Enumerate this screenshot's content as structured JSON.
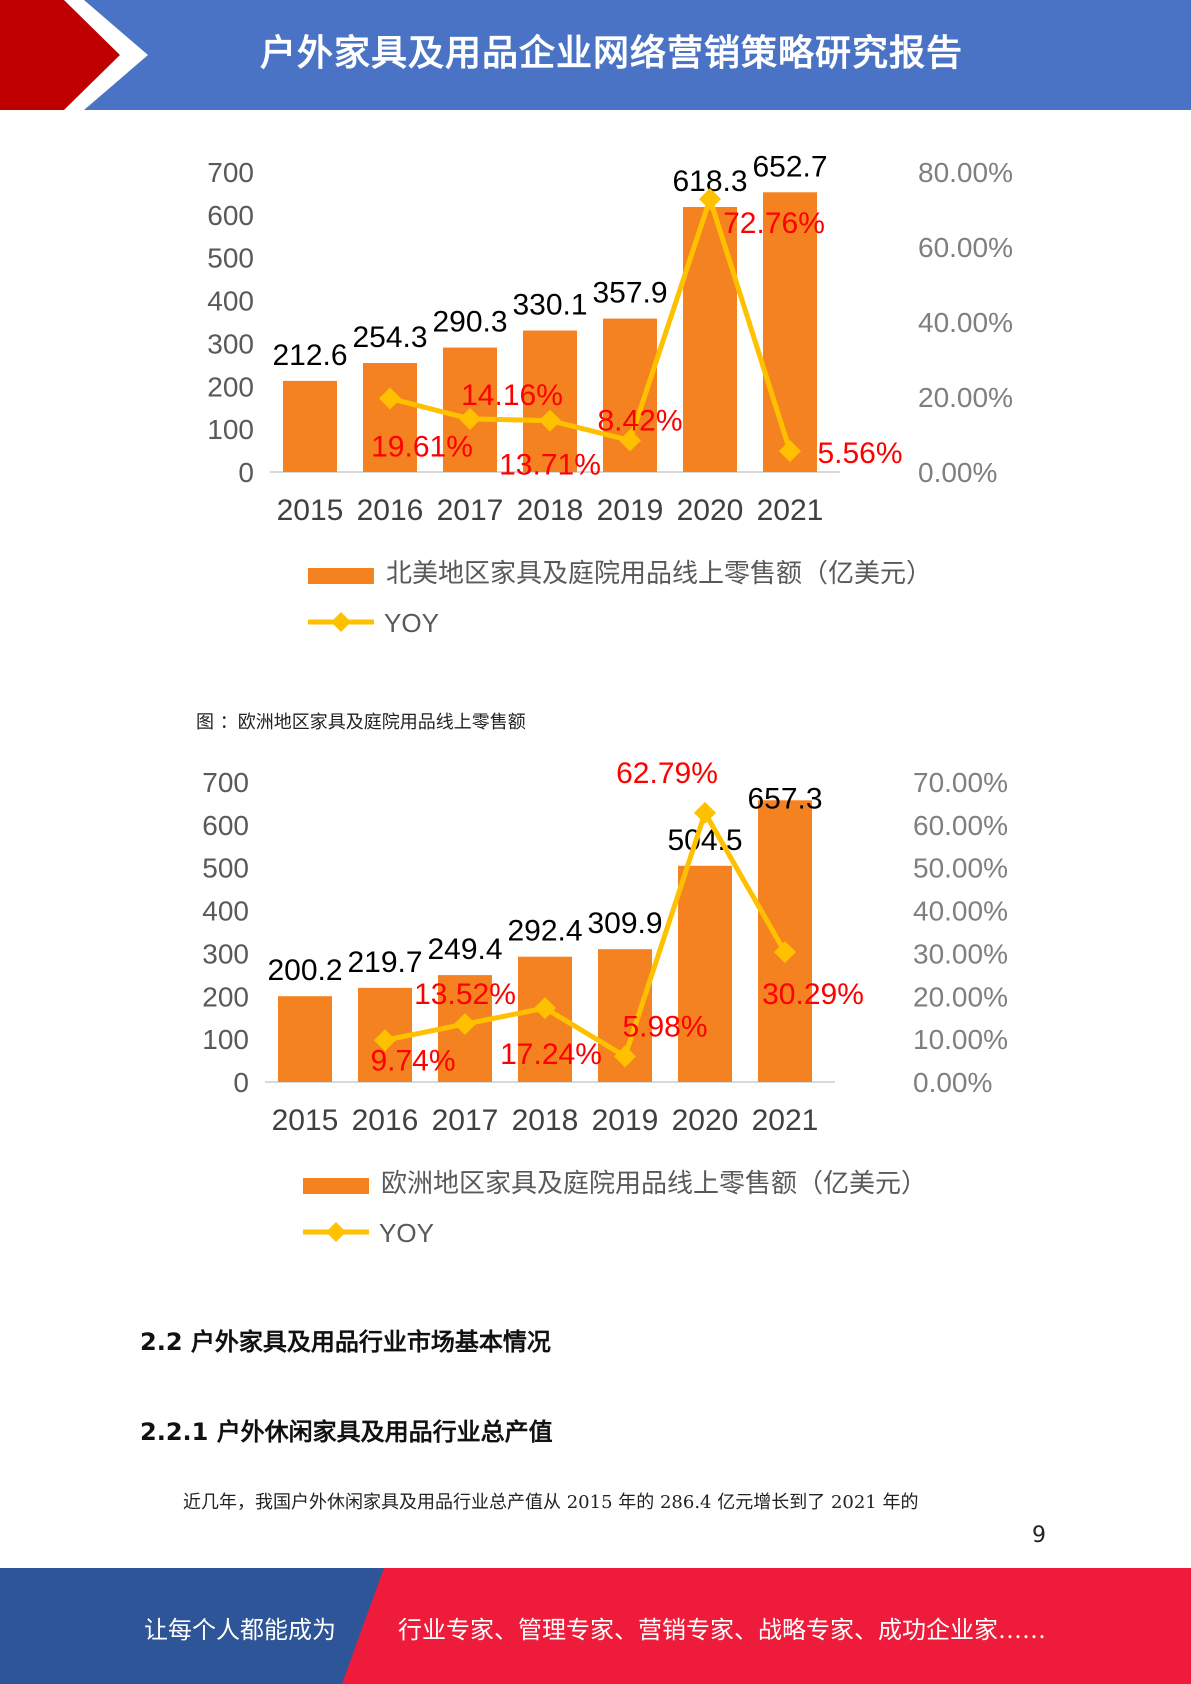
{
  "header": {
    "title": "户外家具及用品企业网络营销策略研究报告"
  },
  "charts": {
    "north_america": {
      "legend_bar": "北美地区家具及庭院用品线上零售额（亿美元）",
      "legend_line": "YOY"
    },
    "europe": {
      "caption": "图 ：欧洲地区家具及庭院用品线上零售额",
      "legend_bar": "欧洲地区家具及庭院用品线上零售额（亿美元）",
      "legend_line": "YOY"
    }
  },
  "chart_data": [
    {
      "type": "bar",
      "categories": [
        "2015",
        "2016",
        "2017",
        "2018",
        "2019",
        "2020",
        "2021"
      ],
      "series": [
        {
          "name": "北美地区家具及庭院用品线上零售额（亿美元）",
          "type": "bar",
          "axis": "left",
          "color": "#f58220",
          "values": [
            212.6,
            254.3,
            290.3,
            330.1,
            357.9,
            618.3,
            652.7
          ],
          "labels": [
            "212.6",
            "254.3",
            "290.3",
            "330.1",
            "357.9",
            "618.3",
            "652.7"
          ]
        },
        {
          "name": "YOY",
          "type": "line",
          "axis": "right",
          "color": "#ffc000",
          "values": [
            null,
            19.61,
            14.16,
            13.71,
            8.42,
            72.76,
            5.56
          ],
          "labels": [
            "",
            "19.61%",
            "14.16%",
            "13.71%",
            "8.42%",
            "72.76%",
            "5.56%"
          ]
        }
      ],
      "y_left": {
        "min": 0,
        "max": 700,
        "ticks": [
          "0",
          "100",
          "200",
          "300",
          "400",
          "500",
          "600",
          "700"
        ]
      },
      "y_right": {
        "min": 0,
        "max": 80,
        "ticks": [
          "0.00%",
          "20.00%",
          "40.00%",
          "60.00%",
          "80.00%"
        ]
      },
      "label_color": "#ff0000",
      "legend_position": "bottom"
    },
    {
      "type": "bar",
      "categories": [
        "2015",
        "2016",
        "2017",
        "2018",
        "2019",
        "2020",
        "2021"
      ],
      "series": [
        {
          "name": "欧洲地区家具及庭院用品线上零售额（亿美元）",
          "type": "bar",
          "axis": "left",
          "color": "#f58220",
          "values": [
            200.2,
            219.7,
            249.4,
            292.4,
            309.9,
            504.5,
            657.3
          ],
          "labels": [
            "200.2",
            "219.7",
            "249.4",
            "292.4",
            "309.9",
            "504.5",
            "657.3"
          ]
        },
        {
          "name": "YOY",
          "type": "line",
          "axis": "right",
          "color": "#ffc000",
          "values": [
            null,
            9.74,
            13.52,
            17.24,
            5.98,
            62.79,
            30.29
          ],
          "labels": [
            "",
            "9.74%",
            "13.52%",
            "17.24%",
            "5.98%",
            "62.79%",
            "30.29%"
          ]
        }
      ],
      "y_left": {
        "min": 0,
        "max": 700,
        "ticks": [
          "0",
          "100",
          "200",
          "300",
          "400",
          "500",
          "600",
          "700"
        ]
      },
      "y_right": {
        "min": 0,
        "max": 70,
        "ticks": [
          "0.00%",
          "10.00%",
          "20.00%",
          "30.00%",
          "40.00%",
          "50.00%",
          "60.00%",
          "70.00%"
        ]
      },
      "label_color": "#ff0000",
      "legend_position": "bottom"
    }
  ],
  "section": {
    "h2": "2.2 户外家具及用品行业市场基本情况",
    "h3": "2.2.1 户外休闲家具及用品行业总产值",
    "paragraph": "近几年，我国户外休闲家具及用品行业总产值从 2015 年的 286.4 亿元增长到了 2021 年的"
  },
  "page_number": "9",
  "footer": {
    "left": "让每个人都能成为",
    "right": "行业专家、管理专家、营销专家、战略专家、成功企业家……"
  },
  "colors": {
    "header_blue": "#4a73c5",
    "header_red": "#c00000",
    "footer_blue": "#2e5597",
    "footer_red": "#ee1c3a"
  }
}
